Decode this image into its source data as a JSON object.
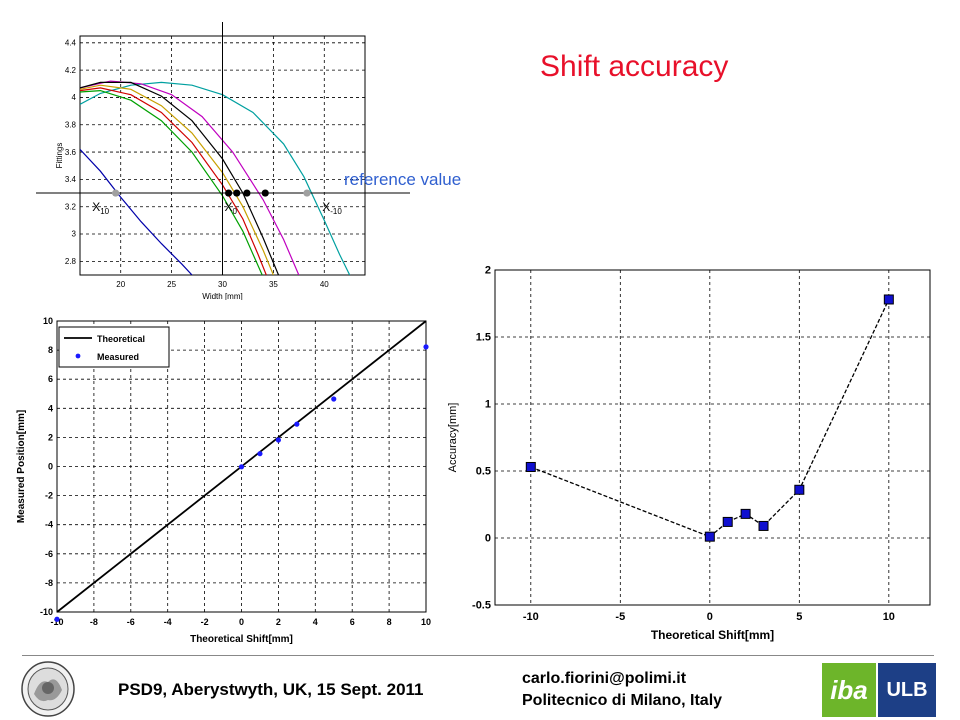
{
  "slide": {
    "title": "Shift accuracy",
    "reference_label": "reference value",
    "footer_left": "PSD9, Aberystwyth, UK, 15 Sept. 2011",
    "footer_email": "carlo.fiorini@polimi.it",
    "footer_institution": "Politecnico di Milano, Italy",
    "logo_right_1": "iba",
    "logo_right_2": "ULB"
  },
  "chart_data": [
    {
      "id": "fittings",
      "type": "line",
      "title": "",
      "xlabel": "Width [mm]",
      "ylabel": "Fittings",
      "xlim": [
        16,
        44
      ],
      "ylim": [
        2.7,
        4.45
      ],
      "xticks": [
        20,
        25,
        30,
        35,
        40
      ],
      "yticks": [
        2.8,
        3,
        3.2,
        3.4,
        3.6,
        3.8,
        4,
        4.2,
        4.4
      ],
      "grid": true,
      "reference_y": 3.3,
      "vertical_line_x": 30,
      "annotations": [
        {
          "text": "X",
          "sub": "10",
          "x": 17.2,
          "y": 3.17
        },
        {
          "text": "X",
          "sub": "0",
          "x": 30.2,
          "y": 3.17
        },
        {
          "text": "X",
          "sub": "-10",
          "x": 39.8,
          "y": 3.17
        }
      ],
      "series": [
        {
          "color": "#0000aa",
          "points": [
            [
              16,
              3.62
            ],
            [
              18,
              3.46
            ],
            [
              20,
              3.27
            ],
            [
              22,
              3.09
            ],
            [
              24,
              2.93
            ],
            [
              26,
              2.78
            ],
            [
              27,
              2.7
            ]
          ]
        },
        {
          "color": "#00a0a0",
          "points": [
            [
              16,
              3.95
            ],
            [
              18,
              4.03
            ],
            [
              21,
              4.09
            ],
            [
              24,
              4.11
            ],
            [
              27,
              4.09
            ],
            [
              30,
              4.02
            ],
            [
              33,
              3.89
            ],
            [
              36,
              3.66
            ],
            [
              38,
              3.42
            ],
            [
              40,
              3.1
            ],
            [
              41.5,
              2.85
            ],
            [
              42.5,
              2.7
            ]
          ]
        },
        {
          "color": "#c000c0",
          "points": [
            [
              16,
              4.07
            ],
            [
              19,
              4.12
            ],
            [
              22,
              4.1
            ],
            [
              25,
              4.02
            ],
            [
              28,
              3.86
            ],
            [
              31,
              3.6
            ],
            [
              34,
              3.25
            ],
            [
              36,
              2.96
            ],
            [
              37.5,
              2.7
            ]
          ]
        },
        {
          "color": "#000000",
          "points": [
            [
              16,
              4.07
            ],
            [
              18,
              4.11
            ],
            [
              21,
              4.11
            ],
            [
              24,
              4.01
            ],
            [
              27,
              3.83
            ],
            [
              30,
              3.55
            ],
            [
              32,
              3.3
            ],
            [
              34,
              2.97
            ],
            [
              35.5,
              2.7
            ]
          ]
        },
        {
          "color": "#c8a000",
          "points": [
            [
              16,
              4.06
            ],
            [
              18,
              4.09
            ],
            [
              21,
              4.06
            ],
            [
              24,
              3.94
            ],
            [
              27,
              3.74
            ],
            [
              30,
              3.45
            ],
            [
              32,
              3.2
            ],
            [
              34,
              2.88
            ],
            [
              35,
              2.7
            ]
          ]
        },
        {
          "color": "#d00000",
          "points": [
            [
              16,
              4.05
            ],
            [
              18,
              4.07
            ],
            [
              21,
              4.02
            ],
            [
              24,
              3.89
            ],
            [
              27,
              3.67
            ],
            [
              30,
              3.36
            ],
            [
              32,
              3.11
            ],
            [
              33.5,
              2.85
            ],
            [
              34.3,
              2.7
            ]
          ]
        },
        {
          "color": "#00a000",
          "points": [
            [
              16,
              4.04
            ],
            [
              18,
              4.05
            ],
            [
              21,
              3.98
            ],
            [
              24,
              3.83
            ],
            [
              27,
              3.6
            ],
            [
              30,
              3.28
            ],
            [
              32,
              3.02
            ],
            [
              33.3,
              2.8
            ],
            [
              33.9,
              2.7
            ]
          ]
        }
      ],
      "markers": [
        {
          "x": 19.5,
          "y": 3.3,
          "color": "#a0a0a0"
        },
        {
          "x": 30.6,
          "y": 3.3,
          "color": "#000000"
        },
        {
          "x": 31.4,
          "y": 3.3,
          "color": "#000000"
        },
        {
          "x": 32.4,
          "y": 3.3,
          "color": "#000000"
        },
        {
          "x": 34.2,
          "y": 3.3,
          "color": "#000000"
        },
        {
          "x": 38.3,
          "y": 3.3,
          "color": "#a0a0a0"
        }
      ]
    },
    {
      "id": "position",
      "type": "scatter",
      "title": "",
      "xlabel": "Theoretical Shift[mm]",
      "ylabel": "Measured Position[mm]",
      "xlim": [
        -10,
        10
      ],
      "ylim": [
        -10,
        10
      ],
      "xticks": [
        -10,
        -8,
        -6,
        -4,
        -2,
        0,
        2,
        4,
        6,
        8,
        10
      ],
      "yticks": [
        -10,
        -8,
        -6,
        -4,
        -2,
        0,
        2,
        4,
        6,
        8,
        10
      ],
      "grid": true,
      "legend": "top-left",
      "series": [
        {
          "name": "Theoretical",
          "kind": "line",
          "color": "#000000",
          "x": [
            -10,
            10
          ],
          "y": [
            -10,
            10
          ]
        },
        {
          "name": "Measured",
          "kind": "points",
          "color": "#1a1aff",
          "x": [
            -10,
            0,
            1,
            2,
            3,
            5,
            10
          ],
          "y": [
            -10.5,
            -0.02,
            0.88,
            1.82,
            2.91,
            4.64,
            8.22
          ]
        }
      ]
    },
    {
      "id": "accuracy",
      "type": "line",
      "title": "",
      "xlabel": "Theoretical Shift[mm]",
      "ylabel": "Accuracy[mm]",
      "xlim": [
        -12,
        12.3
      ],
      "ylim": [
        -0.5,
        2
      ],
      "xticks": [
        -10,
        -5,
        0,
        5,
        10
      ],
      "yticks": [
        -0.5,
        0,
        0.5,
        1,
        1.5,
        2
      ],
      "grid": true,
      "color": "#000000",
      "marker_color": "#1010d0",
      "x": [
        -10,
        0,
        1,
        2,
        3,
        5,
        10
      ],
      "y": [
        0.53,
        0.01,
        0.12,
        0.18,
        0.09,
        0.36,
        1.78
      ]
    }
  ]
}
